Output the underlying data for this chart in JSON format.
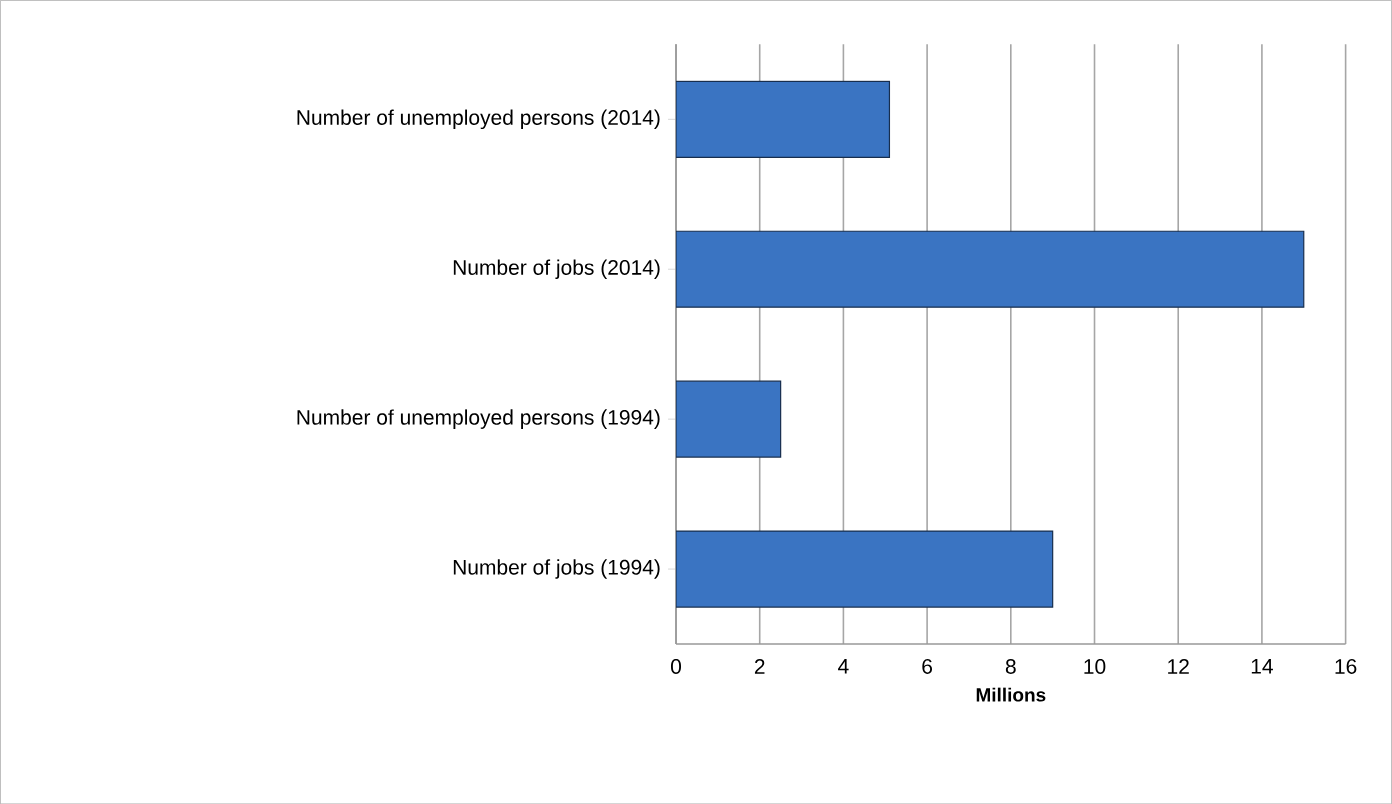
{
  "chart_data": {
    "type": "bar",
    "orientation": "horizontal",
    "xlabel": "Millions",
    "categories": [
      "Number of unemployed persons (2014)",
      "Number of jobs (2014)",
      "Number of unemployed persons (1994)",
      "Number of jobs (1994)"
    ],
    "values": [
      5.1,
      15.0,
      2.5,
      9.0
    ],
    "color": "#3a74c2",
    "xlim": [
      0,
      16
    ],
    "xticks": [
      0,
      2,
      4,
      6,
      8,
      10,
      12,
      14,
      16
    ],
    "grid": "x"
  }
}
